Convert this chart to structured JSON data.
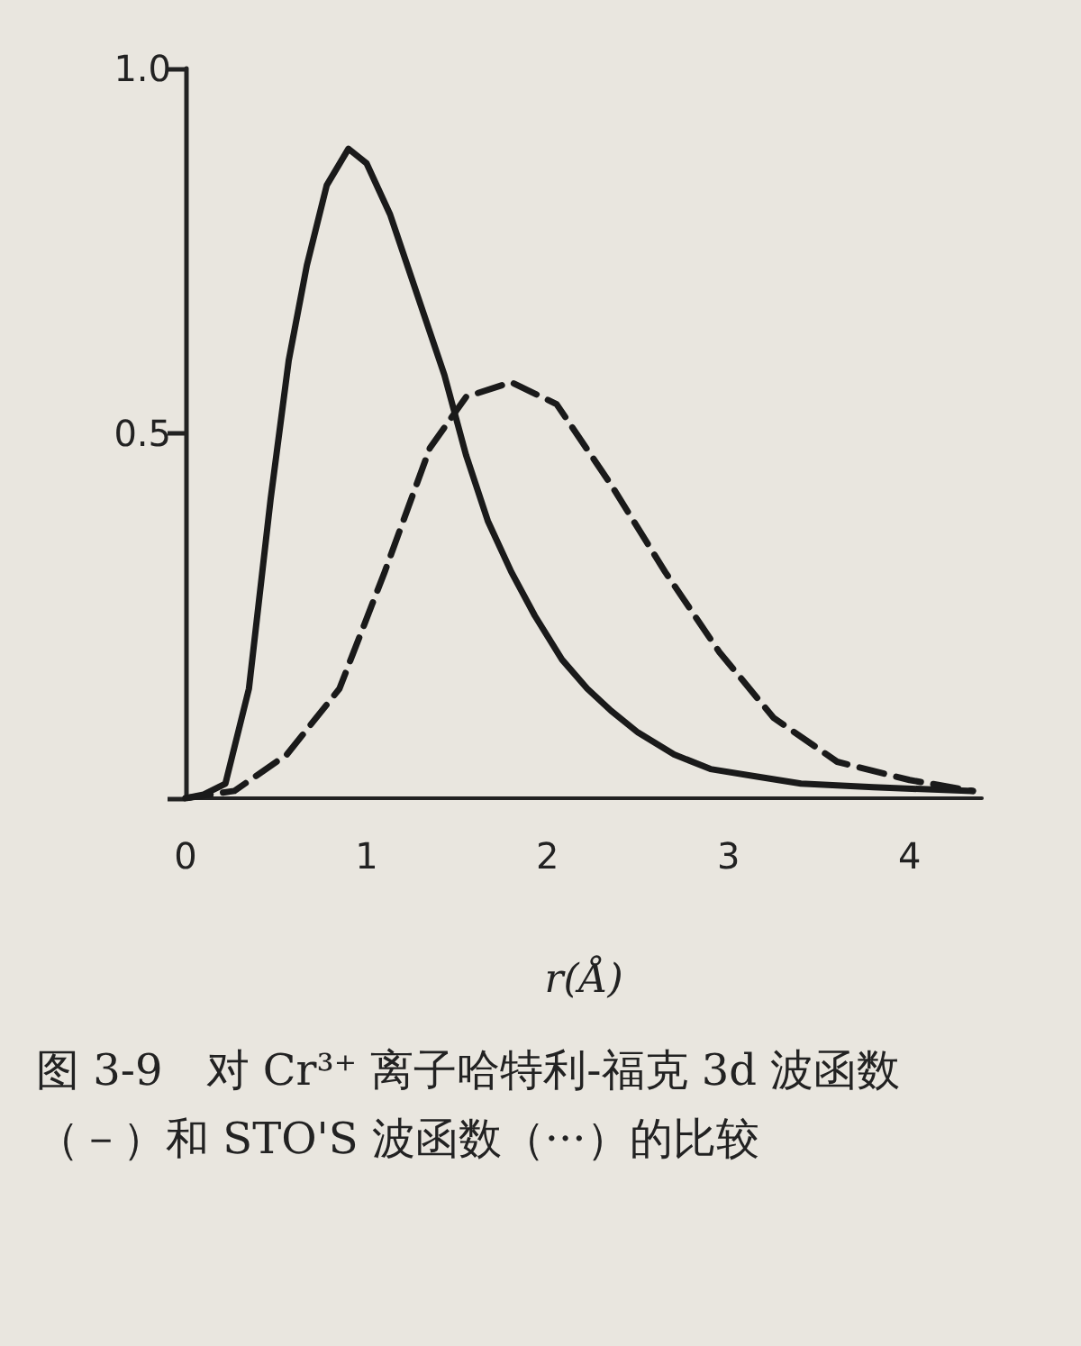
{
  "chart_data": {
    "type": "line",
    "xlabel": "r(Å)",
    "annotations": [
      "图 3-9　对 Cr³⁺ 离子哈特利-福克 3d 波函数（－）和 STO'S 波函数（···）的比较"
    ],
    "xlim": [
      0,
      4.4
    ],
    "xticks": [
      0,
      1,
      2,
      3,
      4
    ],
    "ylim": [
      0,
      1
    ],
    "yticks": [
      {
        "value": 0,
        "label": null
      },
      {
        "value": 0.5,
        "label": "0.5"
      },
      {
        "value": 1,
        "label": "1.0"
      }
    ],
    "grid": false,
    "marker": "none",
    "tick_labels": "xy",
    "series": [
      {
        "color": "#1a1a1a",
        "line_style": "solid",
        "x": [
          0,
          0.1,
          0.22,
          0.35,
          0.47,
          0.57,
          0.67,
          0.78,
          0.9,
          1.0,
          1.13,
          1.28,
          1.43,
          1.55,
          1.67,
          1.8,
          1.93,
          2.08,
          2.22,
          2.35,
          2.5,
          2.7,
          2.9,
          3.15,
          3.4,
          3.8,
          4.35
        ],
        "values": [
          0,
          0.005,
          0.02,
          0.15,
          0.41,
          0.6,
          0.73,
          0.84,
          0.89,
          0.87,
          0.8,
          0.69,
          0.58,
          0.47,
          0.38,
          0.31,
          0.25,
          0.19,
          0.15,
          0.12,
          0.09,
          0.06,
          0.04,
          0.03,
          0.02,
          0.015,
          0.01
        ]
      },
      {
        "color": "#1a1a1a",
        "line_style": "dashed",
        "x": [
          0,
          0.27,
          0.56,
          0.85,
          1.1,
          1.35,
          1.55,
          1.8,
          2.05,
          2.35,
          2.65,
          2.95,
          3.25,
          3.6,
          4.0,
          4.35
        ],
        "values": [
          0,
          0.01,
          0.06,
          0.15,
          0.31,
          0.48,
          0.55,
          0.57,
          0.54,
          0.43,
          0.31,
          0.2,
          0.11,
          0.05,
          0.025,
          0.01
        ]
      }
    ]
  }
}
